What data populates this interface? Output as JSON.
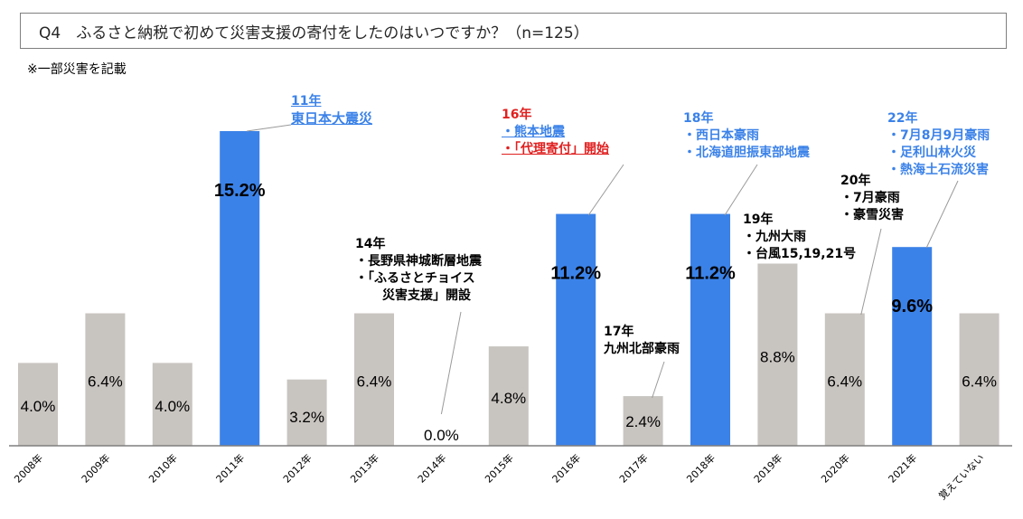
{
  "title": "Q4　ふるさと納税で初めて災害支援の寄付をしたのはいつですか？（n=125）",
  "note": "※一部災害を記載",
  "colors": {
    "gray": "#c8c4c0",
    "blue": "#3b82e8",
    "red": "#e02020",
    "axis": "#7f7f7f"
  },
  "chart_data": {
    "type": "bar",
    "title": "Q4　ふるさと納税で初めて災害支援の寄付をしたのはいつですか？（n=125）",
    "xlabel": "",
    "ylabel": "",
    "ylim": [
      0,
      16
    ],
    "grid": false,
    "categories": [
      "2008年",
      "2009年",
      "2010年",
      "2011年",
      "2012年",
      "2013年",
      "2014年",
      "2015年",
      "2016年",
      "2017年",
      "2018年",
      "2019年",
      "2020年",
      "2021年",
      "覚えていない"
    ],
    "values": [
      4.0,
      6.4,
      4.0,
      15.2,
      3.2,
      6.4,
      0.0,
      4.8,
      11.2,
      2.4,
      11.2,
      8.8,
      6.4,
      9.6,
      6.4
    ],
    "value_labels": [
      "4.0%",
      "6.4%",
      "4.0%",
      "15.2%",
      "3.2%",
      "6.4%",
      "0.0%",
      "4.8%",
      "11.2%",
      "2.4%",
      "11.2%",
      "8.8%",
      "6.4%",
      "9.6%",
      "6.4%"
    ],
    "highlighted": [
      false,
      false,
      false,
      true,
      false,
      false,
      false,
      false,
      true,
      false,
      true,
      false,
      false,
      true,
      false
    ]
  },
  "annotations": {
    "a11": {
      "head": "11年",
      "lines": [
        "東日本大震災"
      ]
    },
    "a14": {
      "head": "14年",
      "lines": [
        "・長野県神城断層地震",
        "・「ふるさとチョイス",
        "災害支援」開設"
      ]
    },
    "a16": {
      "head": "16年",
      "lines": [
        "・熊本地震",
        "・「代理寄付」開始"
      ]
    },
    "a17": {
      "head": "17年",
      "lines": [
        "九州北部豪雨"
      ]
    },
    "a18": {
      "head": "18年",
      "lines": [
        "・西日本豪雨",
        "・北海道胆振東部地震"
      ]
    },
    "a19": {
      "head": "19年",
      "lines": [
        "・九州大雨",
        "・台風15,19,21号"
      ]
    },
    "a20": {
      "head": "20年",
      "lines": [
        "・7月豪雨",
        "・豪雪災害"
      ]
    },
    "a22": {
      "head": "22年",
      "lines": [
        "・7月8月9月豪雨",
        "・足利山林火災",
        "・熱海土石流災害"
      ]
    }
  }
}
